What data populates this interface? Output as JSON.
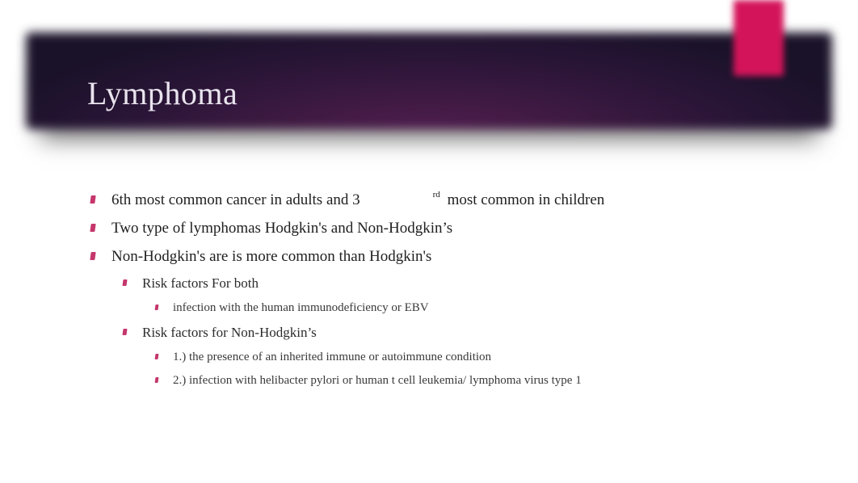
{
  "accent_color": "#d4145a",
  "bullet_color": "#c5376c",
  "title_color": "#e9e4ee",
  "banner_bg_outer": "#1a1229",
  "banner_bg_inner": "#5b1f57",
  "title": "Lymphoma",
  "bullets": {
    "b0_left": "6th most common cancer in adults and 3",
    "b0_sup": "rd",
    "b0_right": " most common in children",
    "b1": "Two type of lymphomas Hodgkin's and Non-Hodgkin’s",
    "b2": "Non-Hodgkin's are is more common than Hodgkin's",
    "b2_sub0": "Risk factors For both",
    "b2_sub0_0": "infection with the human immunodeficiency or EBV",
    "b2_sub1": "Risk factors for Non-Hodgkin’s",
    "b2_sub1_0": "1.) the presence of an inherited immune or autoimmune condition",
    "b2_sub1_1": "2.) infection with helibacter pylori or human t cell leukemia/ lymphoma virus type 1"
  }
}
